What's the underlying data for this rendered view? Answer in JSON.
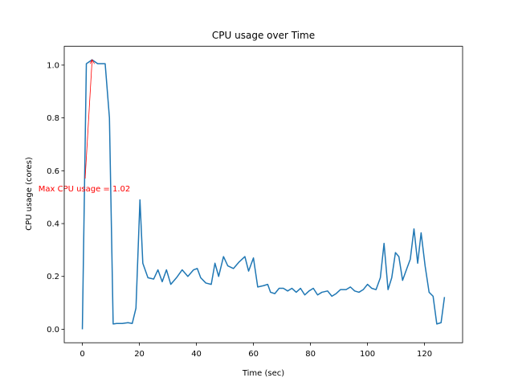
{
  "chart_data": {
    "type": "line",
    "title": "CPU usage over Time",
    "x_label": "Time (sec)",
    "y_label": "CPU usage (cores)",
    "color": "#1f77b4",
    "x": [
      0,
      1.4,
      3.4,
      5.4,
      8,
      9.5,
      10.8,
      12,
      14,
      16,
      17.5,
      18.8,
      20.2,
      21.2,
      23,
      25,
      26.5,
      28,
      29.5,
      31,
      33,
      35,
      37,
      39,
      40.3,
      41.5,
      43.3,
      45.2,
      46.5,
      47.8,
      49.5,
      51,
      53,
      55,
      57,
      58.3,
      60,
      61.5,
      63.5,
      65,
      66,
      67.5,
      69,
      70.5,
      72,
      73.5,
      75,
      76.5,
      78,
      79.5,
      81,
      82.5,
      84,
      86,
      87.5,
      89,
      90.5,
      92.5,
      94,
      95.5,
      97,
      98.5,
      100,
      101.5,
      103,
      104.5,
      105.8,
      107.2,
      108.5,
      109.8,
      111,
      112.3,
      113.8,
      115,
      116.3,
      117.6,
      118.8,
      120.2,
      121.6,
      123,
      124.3,
      125.8,
      127
    ],
    "values": [
      0.0,
      1.005,
      1.02,
      1.005,
      1.005,
      0.8,
      0.02,
      0.022,
      0.022,
      0.025,
      0.022,
      0.08,
      0.49,
      0.25,
      0.195,
      0.19,
      0.225,
      0.18,
      0.225,
      0.17,
      0.195,
      0.225,
      0.2,
      0.225,
      0.23,
      0.195,
      0.175,
      0.17,
      0.25,
      0.2,
      0.275,
      0.24,
      0.23,
      0.255,
      0.275,
      0.22,
      0.27,
      0.16,
      0.165,
      0.17,
      0.14,
      0.135,
      0.155,
      0.155,
      0.145,
      0.155,
      0.14,
      0.155,
      0.13,
      0.145,
      0.155,
      0.13,
      0.14,
      0.145,
      0.125,
      0.135,
      0.15,
      0.15,
      0.16,
      0.145,
      0.14,
      0.15,
      0.17,
      0.155,
      0.15,
      0.195,
      0.325,
      0.15,
      0.195,
      0.29,
      0.275,
      0.185,
      0.23,
      0.265,
      0.38,
      0.25,
      0.365,
      0.24,
      0.14,
      0.125,
      0.02,
      0.025,
      0.122
    ],
    "xlim": [
      -6.35,
      133.35
    ],
    "ylim": [
      -0.051,
      1.071
    ],
    "xticks": [
      0,
      20,
      40,
      60,
      80,
      100,
      120
    ],
    "yticks": [
      {
        "value": 0,
        "label": "0.0"
      },
      0.2,
      0.4,
      0.6,
      0.8,
      {
        "value": 1,
        "label": "1.0"
      }
    ],
    "annotation": {
      "text": "Max CPU usage = 1.02",
      "x": 3.4,
      "y": 1.02,
      "color": "red"
    }
  }
}
